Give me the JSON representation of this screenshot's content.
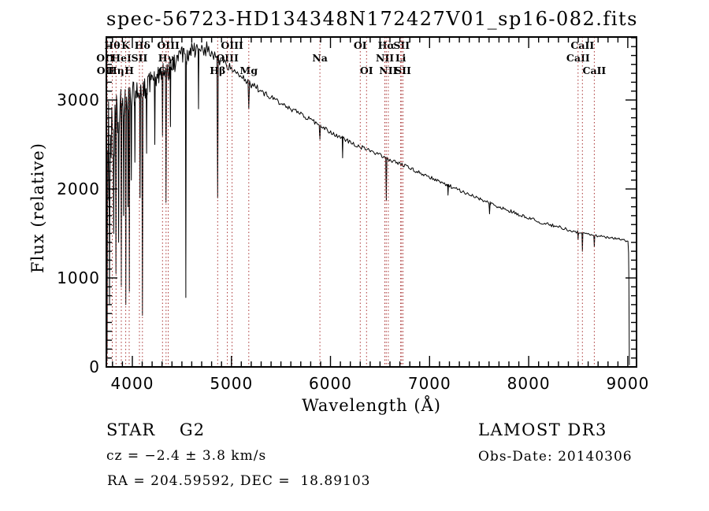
{
  "title": "spec-56723-HD134348N172427V01_sp16-082.fits",
  "footer": {
    "class_label": "STAR    G2",
    "cz": "cz = −2.4 ± 3.8 km/s",
    "radec": "RA = 204.59592, DEC =  18.89103",
    "survey": "LAMOST DR3",
    "obs_date": "Obs-Date: 20140306"
  },
  "chart_data": {
    "type": "line",
    "title": "spec-56723-HD134348N172427V01_sp16-082.fits",
    "xlabel": "Wavelength (Å)",
    "ylabel": "Flux (relative)",
    "xlim": [
      3738,
      9088
    ],
    "ylim": [
      0,
      3708
    ],
    "x_major_ticks": [
      4000,
      5000,
      6000,
      7000,
      8000,
      9000
    ],
    "x_minor_step": 100,
    "y_major_ticks": [
      0,
      1000,
      2000,
      3000
    ],
    "y_minor_step": 100,
    "grid": false,
    "legend": "none",
    "line_color": "#000000",
    "marker_line_color": "#a83232",
    "noise_seed": 20140306,
    "spectral_lines": [
      {
        "label": "OII",
        "wavelength": 3727.1,
        "row": 2
      },
      {
        "label": "OII",
        "wavelength": 3729.9,
        "row": 3
      },
      {
        "label": "Hθ",
        "wavelength": 3798.0,
        "row": 1
      },
      {
        "label": "Hη",
        "wavelength": 3835.4,
        "row": 3
      },
      {
        "label": "HeI",
        "wavelength": 3889.0,
        "row": 2
      },
      {
        "label": "K",
        "wavelength": 3933.7,
        "row": 1
      },
      {
        "label": "H",
        "wavelength": 3968.5,
        "row": 3
      },
      {
        "label": "SII",
        "wavelength": 4072.0,
        "row": 2
      },
      {
        "label": "Hδ",
        "wavelength": 4101.7,
        "row": 1
      },
      {
        "label": "G",
        "wavelength": 4305.0,
        "row": 3
      },
      {
        "label": "Hγ",
        "wavelength": 4340.5,
        "row": 2
      },
      {
        "label": "OIII",
        "wavelength": 4363.2,
        "row": 1
      },
      {
        "label": "Hβ",
        "wavelength": 4861.3,
        "row": 3
      },
      {
        "label": "OIII",
        "wavelength": 4959.0,
        "row": 2
      },
      {
        "label": "OIII",
        "wavelength": 5006.8,
        "row": 1
      },
      {
        "label": "Mg",
        "wavelength": 5175.3,
        "row": 3
      },
      {
        "label": "Na",
        "wavelength": 5892.9,
        "row": 2
      },
      {
        "label": "OI",
        "wavelength": 6300.3,
        "row": 1
      },
      {
        "label": "OI",
        "wavelength": 6363.8,
        "row": 3
      },
      {
        "label": "NII",
        "wavelength": 6548.1,
        "row": 2
      },
      {
        "label": "Hα",
        "wavelength": 6562.8,
        "row": 1
      },
      {
        "label": "NII",
        "wavelength": 6583.5,
        "row": 3
      },
      {
        "label": "Li",
        "wavelength": 6707.8,
        "row": 2
      },
      {
        "label": "SII",
        "wavelength": 6716.4,
        "row": 1
      },
      {
        "label": "SII",
        "wavelength": 6730.8,
        "row": 3
      },
      {
        "label": "CaII",
        "wavelength": 8498.0,
        "row": 2
      },
      {
        "label": "CaII",
        "wavelength": 8542.1,
        "row": 1
      },
      {
        "label": "CaII",
        "wavelength": 8662.1,
        "row": 3
      }
    ],
    "spectrum_points": [
      [
        3740,
        2000,
        1800
      ],
      [
        3752,
        2300,
        1500
      ],
      [
        3775,
        2450,
        1000
      ],
      [
        3800,
        2600,
        800
      ],
      [
        3825,
        2700,
        650
      ],
      [
        3850,
        2800,
        550
      ],
      [
        3880,
        2880,
        500
      ],
      [
        3910,
        2950,
        450
      ],
      [
        3950,
        2980,
        400
      ],
      [
        4000,
        3040,
        330
      ],
      [
        4050,
        3090,
        280
      ],
      [
        4120,
        3130,
        260
      ],
      [
        4200,
        3220,
        240
      ],
      [
        4280,
        3300,
        260
      ],
      [
        4360,
        3340,
        260
      ],
      [
        4430,
        3420,
        220
      ],
      [
        4500,
        3480,
        240
      ],
      [
        4570,
        3520,
        220
      ],
      [
        4640,
        3570,
        200
      ],
      [
        4700,
        3590,
        180
      ],
      [
        4760,
        3570,
        170
      ],
      [
        4820,
        3520,
        150
      ],
      [
        4880,
        3440,
        130
      ],
      [
        4940,
        3390,
        110
      ],
      [
        5000,
        3350,
        100
      ],
      [
        5080,
        3290,
        90
      ],
      [
        5160,
        3200,
        85
      ],
      [
        5240,
        3150,
        75
      ],
      [
        5330,
        3080,
        70
      ],
      [
        5420,
        3020,
        65
      ],
      [
        5510,
        2960,
        60
      ],
      [
        5600,
        2900,
        60
      ],
      [
        5700,
        2840,
        58
      ],
      [
        5800,
        2780,
        56
      ],
      [
        5890,
        2700,
        54
      ],
      [
        5990,
        2650,
        52
      ],
      [
        6090,
        2590,
        52
      ],
      [
        6190,
        2530,
        50
      ],
      [
        6290,
        2480,
        48
      ],
      [
        6390,
        2430,
        48
      ],
      [
        6490,
        2390,
        46
      ],
      [
        6590,
        2330,
        44
      ],
      [
        6690,
        2290,
        44
      ],
      [
        6790,
        2240,
        42
      ],
      [
        6890,
        2190,
        42
      ],
      [
        6990,
        2140,
        42
      ],
      [
        7090,
        2090,
        40
      ],
      [
        7190,
        2040,
        40
      ],
      [
        7290,
        1990,
        40
      ],
      [
        7390,
        1945,
        40
      ],
      [
        7490,
        1895,
        42
      ],
      [
        7590,
        1845,
        46
      ],
      [
        7690,
        1800,
        42
      ],
      [
        7790,
        1760,
        40
      ],
      [
        7890,
        1720,
        40
      ],
      [
        7990,
        1680,
        40
      ],
      [
        8090,
        1640,
        40
      ],
      [
        8190,
        1605,
        38
      ],
      [
        8290,
        1575,
        38
      ],
      [
        8390,
        1545,
        36
      ],
      [
        8470,
        1525,
        34
      ],
      [
        8530,
        1505,
        32
      ],
      [
        8600,
        1490,
        30
      ],
      [
        8700,
        1470,
        30
      ],
      [
        8800,
        1455,
        28
      ],
      [
        8900,
        1440,
        26
      ],
      [
        8970,
        1425,
        24
      ],
      [
        9005,
        1405,
        20
      ],
      [
        9010,
        1200,
        0
      ],
      [
        9013,
        500,
        0
      ],
      [
        9016,
        20,
        0
      ]
    ],
    "absorption_features": [
      [
        3745,
        150,
        14
      ],
      [
        3770,
        700,
        10
      ],
      [
        3812,
        1500,
        9
      ],
      [
        3835,
        1050,
        10
      ],
      [
        3862,
        1400,
        9
      ],
      [
        3889,
        900,
        10
      ],
      [
        3912,
        1700,
        8
      ],
      [
        3934,
        700,
        12
      ],
      [
        3957,
        1800,
        8
      ],
      [
        3970,
        850,
        11
      ],
      [
        3990,
        2100,
        8
      ],
      [
        4026,
        2300,
        8
      ],
      [
        4078,
        1900,
        9
      ],
      [
        4102,
        580,
        12
      ],
      [
        4144,
        2400,
        8
      ],
      [
        4227,
        2500,
        9
      ],
      [
        4305,
        2600,
        10
      ],
      [
        4340,
        1850,
        12
      ],
      [
        4385,
        2700,
        8
      ],
      [
        4540,
        780,
        10
      ],
      [
        4668,
        2900,
        8
      ],
      [
        4861,
        1900,
        14
      ],
      [
        5175,
        2900,
        16
      ],
      [
        5893,
        2560,
        14
      ],
      [
        6122,
        2350,
        8
      ],
      [
        6563,
        1870,
        11
      ],
      [
        7186,
        1930,
        9
      ],
      [
        7605,
        1720,
        12
      ],
      [
        8498,
        1430,
        9
      ],
      [
        8542,
        1300,
        10
      ],
      [
        8662,
        1350,
        10
      ]
    ]
  }
}
